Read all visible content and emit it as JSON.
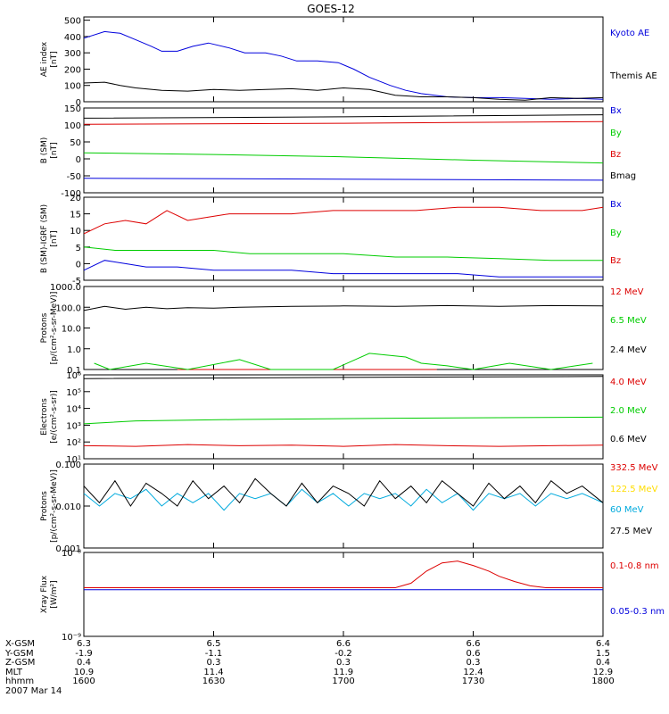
{
  "title": "GOES-12",
  "date": "2007 Mar 14",
  "colors": {
    "black": "#000000",
    "red": "#dd0000",
    "green": "#00cc00",
    "blue": "#0000dd",
    "yellow": "#ffdd00",
    "cyan": "#00aadd"
  },
  "chart_data": [
    {
      "type": "line",
      "scale": "linear",
      "ylabel": [
        "AE index",
        "[nT]"
      ],
      "yticks": [
        "500",
        "400",
        "300",
        "200",
        "100",
        "0"
      ],
      "ytick_values": [
        500,
        400,
        300,
        200,
        100,
        0
      ],
      "ylim": [
        0,
        520
      ],
      "series": [
        {
          "name": "Kyoto AE",
          "color": "blue",
          "x": [
            0,
            4,
            7,
            10,
            13,
            15,
            18,
            21,
            24,
            28,
            31,
            35,
            38,
            41,
            45,
            49,
            52,
            55,
            59,
            62,
            65,
            70,
            75,
            80,
            85,
            90,
            95,
            100
          ],
          "y": [
            390,
            430,
            420,
            380,
            340,
            310,
            310,
            340,
            360,
            330,
            300,
            300,
            280,
            250,
            250,
            240,
            200,
            150,
            100,
            70,
            50,
            30,
            25,
            25,
            20,
            15,
            20,
            15
          ]
        },
        {
          "name": "Themis AE",
          "color": "black",
          "x": [
            0,
            4,
            7,
            10,
            15,
            20,
            25,
            30,
            35,
            40,
            45,
            50,
            55,
            60,
            65,
            70,
            75,
            80,
            85,
            90,
            95,
            100
          ],
          "y": [
            115,
            120,
            100,
            85,
            70,
            65,
            75,
            70,
            75,
            80,
            70,
            85,
            75,
            40,
            30,
            30,
            25,
            15,
            10,
            25,
            20,
            25
          ]
        }
      ]
    },
    {
      "type": "line",
      "scale": "linear",
      "ylabel": [
        "B (SM)",
        "[nT]"
      ],
      "yticks": [
        "150",
        "100",
        "50",
        "0",
        "-50",
        "-100"
      ],
      "ytick_values": [
        150,
        100,
        50,
        0,
        -50,
        -100
      ],
      "ylim": [
        -100,
        150
      ],
      "series": [
        {
          "name": "Bx",
          "color": "blue",
          "x": [
            0,
            100
          ],
          "y": [
            -57,
            -63
          ]
        },
        {
          "name": "By",
          "color": "green",
          "x": [
            0,
            25,
            50,
            75,
            100
          ],
          "y": [
            18,
            13,
            6,
            -4,
            -12
          ]
        },
        {
          "name": "Bz",
          "color": "red",
          "x": [
            0,
            50,
            100
          ],
          "y": [
            102,
            105,
            110
          ]
        },
        {
          "name": "Bmag",
          "color": "black",
          "x": [
            0,
            50,
            100
          ],
          "y": [
            120,
            124,
            130
          ]
        }
      ]
    },
    {
      "type": "line",
      "scale": "linear",
      "ylabel": [
        "B (SM)-IGRF (SM)",
        "[nT]"
      ],
      "yticks": [
        "20",
        "15",
        "10",
        "5",
        "0",
        "-5"
      ],
      "ytick_values": [
        20,
        15,
        10,
        5,
        0,
        -5
      ],
      "ylim": [
        -5,
        20
      ],
      "series": [
        {
          "name": "Bx",
          "color": "blue",
          "x": [
            0,
            4,
            8,
            12,
            18,
            25,
            32,
            40,
            48,
            56,
            64,
            72,
            80,
            88,
            96,
            100
          ],
          "y": [
            -2,
            1,
            0,
            -1,
            -1,
            -2,
            -2,
            -2,
            -3,
            -3,
            -3,
            -3,
            -4,
            -4,
            -4,
            -4
          ]
        },
        {
          "name": "By",
          "color": "green",
          "x": [
            0,
            6,
            12,
            18,
            25,
            32,
            40,
            50,
            60,
            70,
            80,
            90,
            96,
            100
          ],
          "y": [
            5,
            4,
            4,
            4,
            4,
            3,
            3,
            3,
            2,
            2,
            1.5,
            1,
            1,
            1
          ]
        },
        {
          "name": "Bz",
          "color": "red",
          "x": [
            0,
            4,
            8,
            12,
            16,
            20,
            24,
            28,
            33,
            40,
            48,
            56,
            64,
            72,
            80,
            88,
            96,
            100
          ],
          "y": [
            9,
            12,
            13,
            12,
            16,
            13,
            14,
            15,
            15,
            15,
            16,
            16,
            16,
            17,
            17,
            16,
            16,
            17
          ]
        }
      ]
    },
    {
      "type": "line",
      "scale": "log",
      "ylabel": [
        "Protons",
        "[p/(cm²-s-sr-MeV)]"
      ],
      "yticks": [
        "1000.0",
        "100.0",
        "10.0",
        "1.0",
        "0.1"
      ],
      "ytick_values": [
        1000,
        100,
        10,
        1,
        0.1
      ],
      "ylim": [
        0.1,
        1000
      ],
      "series": [
        {
          "name": "12 MeV",
          "color": "red",
          "x": [
            18,
            25,
            55,
            68
          ],
          "y": [
            0.1,
            0.1,
            0.1,
            0.1
          ]
        },
        {
          "name": "6.5 MeV",
          "color": "green",
          "x": [
            2,
            5,
            12,
            20,
            30,
            36,
            48,
            55,
            62,
            65,
            70,
            75,
            82,
            90,
            98
          ],
          "y": [
            0.2,
            0.1,
            0.2,
            0.1,
            0.3,
            0.1,
            0.1,
            0.6,
            0.4,
            0.2,
            0.15,
            0.1,
            0.2,
            0.1,
            0.2
          ]
        },
        {
          "name": "2.4 MeV",
          "color": "black",
          "x": [
            0,
            4,
            8,
            12,
            16,
            20,
            25,
            30,
            40,
            50,
            60,
            70,
            80,
            90,
            100
          ],
          "y": [
            70,
            110,
            80,
            100,
            85,
            95,
            90,
            100,
            110,
            115,
            110,
            120,
            110,
            120,
            115
          ]
        }
      ]
    },
    {
      "type": "line",
      "scale": "log",
      "ylabel": [
        "Electrons",
        "[e/(cm²-s-sr)]"
      ],
      "yticks": [
        "10⁶",
        "10⁵",
        "10⁴",
        "10³",
        "10²",
        "10¹"
      ],
      "ytick_values": [
        1000000,
        100000,
        10000,
        1000,
        100,
        10
      ],
      "ylim": [
        10,
        1000000
      ],
      "series": [
        {
          "name": "4.0 MeV",
          "color": "red",
          "x": [
            0,
            10,
            20,
            30,
            40,
            50,
            60,
            70,
            80,
            90,
            100
          ],
          "y": [
            60,
            55,
            70,
            60,
            65,
            55,
            70,
            60,
            55,
            60,
            65
          ]
        },
        {
          "name": "2.0 MeV",
          "color": "green",
          "x": [
            0,
            10,
            30,
            60,
            100
          ],
          "y": [
            1200,
            1800,
            2200,
            2600,
            3000
          ]
        },
        {
          "name": "0.6 MeV",
          "color": "black",
          "x": [
            0,
            50,
            100
          ],
          "y": [
            600000,
            700000,
            800000
          ]
        }
      ]
    },
    {
      "type": "line",
      "scale": "log",
      "ylabel": [
        "Protons",
        "[p/(cm²-s-sr-MeV)]"
      ],
      "yticks": [
        "0.100",
        "0.010",
        "0.001"
      ],
      "ytick_values": [
        0.1,
        0.01,
        0.001
      ],
      "ylim": [
        0.001,
        0.1
      ],
      "series": [
        {
          "name": "332.5 MeV",
          "color": "red",
          "x": [],
          "y": []
        },
        {
          "name": "122.5 MeV",
          "color": "yellow",
          "x": [],
          "y": []
        },
        {
          "name": "60 MeV",
          "color": "cyan",
          "x": [
            0,
            3,
            6,
            9,
            12,
            15,
            18,
            21,
            24,
            27,
            30,
            33,
            36,
            39,
            42,
            45,
            48,
            51,
            54,
            57,
            60,
            63,
            66,
            69,
            72,
            75,
            78,
            81,
            84,
            87,
            90,
            93,
            96,
            100
          ],
          "y": [
            0.02,
            0.01,
            0.02,
            0.015,
            0.025,
            0.01,
            0.02,
            0.012,
            0.02,
            0.008,
            0.02,
            0.015,
            0.02,
            0.01,
            0.025,
            0.012,
            0.02,
            0.01,
            0.02,
            0.015,
            0.02,
            0.01,
            0.025,
            0.012,
            0.02,
            0.008,
            0.02,
            0.015,
            0.02,
            0.01,
            0.02,
            0.015,
            0.02,
            0.012
          ]
        },
        {
          "name": "27.5 MeV",
          "color": "black",
          "x": [
            0,
            3,
            6,
            9,
            12,
            15,
            18,
            21,
            24,
            27,
            30,
            33,
            36,
            39,
            42,
            45,
            48,
            51,
            54,
            57,
            60,
            63,
            66,
            69,
            72,
            75,
            78,
            81,
            84,
            87,
            90,
            93,
            96,
            100
          ],
          "y": [
            0.03,
            0.012,
            0.04,
            0.01,
            0.035,
            0.02,
            0.01,
            0.04,
            0.015,
            0.03,
            0.012,
            0.045,
            0.02,
            0.01,
            0.035,
            0.012,
            0.03,
            0.02,
            0.01,
            0.04,
            0.015,
            0.03,
            0.012,
            0.04,
            0.02,
            0.01,
            0.035,
            0.015,
            0.03,
            0.012,
            0.04,
            0.02,
            0.03,
            0.012
          ]
        }
      ]
    },
    {
      "type": "line",
      "scale": "log",
      "ylabel": [
        "Xray Flux",
        "[W/m²]"
      ],
      "yticks": [
        "10⁻⁸",
        "10⁻⁹"
      ],
      "ytick_values": [
        1e-08,
        1e-09
      ],
      "ylim": [
        1e-09,
        1e-08
      ],
      "series": [
        {
          "name": "0.1-0.8 nm",
          "color": "red",
          "x": [
            0,
            60,
            63,
            66,
            69,
            72,
            75,
            78,
            80,
            83,
            86,
            89,
            92,
            96,
            100
          ],
          "y": [
            3.8e-09,
            3.8e-09,
            4.3e-09,
            6e-09,
            7.5e-09,
            7.9e-09,
            7e-09,
            6e-09,
            5.2e-09,
            4.5e-09,
            4e-09,
            3.8e-09,
            3.8e-09,
            3.8e-09,
            3.8e-09
          ]
        },
        {
          "name": "0.05-0.3 nm",
          "color": "blue",
          "x": [
            0,
            100
          ],
          "y": [
            3.6e-09,
            3.6e-09
          ]
        }
      ]
    }
  ],
  "footer": {
    "row_labels": [
      "X-GSM",
      "Y-GSM",
      "Z-GSM",
      "MLT",
      "hhmm"
    ],
    "columns": [
      [
        "6.3",
        "-1.9",
        "0.4",
        "10.9",
        "1600"
      ],
      [
        "6.5",
        "-1.1",
        "0.3",
        "11.4",
        "1630"
      ],
      [
        "6.6",
        "-0.2",
        "0.3",
        "11.9",
        "1700"
      ],
      [
        "6.6",
        "0.6",
        "0.3",
        "12.4",
        "1730"
      ],
      [
        "6.4",
        "1.5",
        "0.4",
        "12.9",
        "1800"
      ]
    ]
  }
}
